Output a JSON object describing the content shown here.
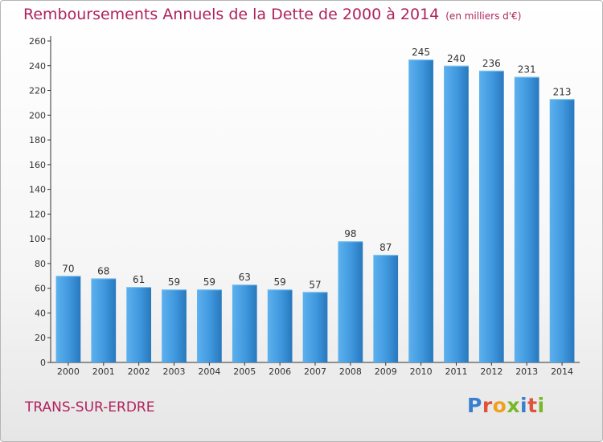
{
  "title": {
    "main": "Remboursements Annuels de la Dette de 2000 à 2014",
    "unit": "(en milliers d'€)"
  },
  "footer": {
    "city": "TRANS-SUR-ERDRE"
  },
  "logo": {
    "text": "Proxiti",
    "letter_colors": [
      "#3a7fcf",
      "#e0533a",
      "#f0a020",
      "#78b828",
      "#3a7fcf",
      "#e0533a",
      "#78b828"
    ]
  },
  "colors": {
    "accent": "#b0225c",
    "bar": "#3f97dd",
    "bar_light": "#5cb1ee",
    "bar_dark": "#2878bd",
    "axis": "#333333",
    "grid": "#cfcfcf"
  },
  "chart_data": {
    "type": "bar",
    "categories": [
      "2000",
      "2001",
      "2002",
      "2003",
      "2004",
      "2005",
      "2006",
      "2007",
      "2008",
      "2009",
      "2010",
      "2011",
      "2012",
      "2013",
      "2014"
    ],
    "values": [
      70,
      68,
      61,
      59,
      59,
      63,
      59,
      57,
      98,
      87,
      245,
      240,
      236,
      231,
      213
    ],
    "ylim": [
      0,
      260
    ],
    "yticks": [
      0,
      20,
      40,
      60,
      80,
      100,
      120,
      140,
      160,
      180,
      200,
      220,
      240,
      260
    ],
    "data_labels": true,
    "grid": false
  }
}
